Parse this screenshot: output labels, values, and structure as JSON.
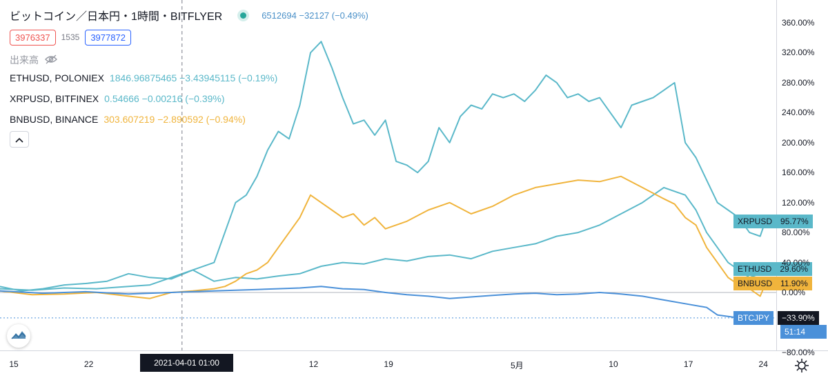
{
  "header": {
    "title": "ビットコイン／日本円・1時間・BITFLYER",
    "btc_values": "6512694  −32127 (−0.49%)"
  },
  "order": {
    "sell_price": "3976337",
    "spread": "1535",
    "buy_price": "3977872"
  },
  "volume_label": "出来高",
  "series_legend": [
    {
      "name": "ETHUSD, POLONIEX",
      "values": "1846.96875465  −3.43945115 (−0.19%)",
      "color": "#5ab8c9"
    },
    {
      "name": "XRPUSD, BITFINEX",
      "values": "0.54666  −0.00216 (−0.39%)",
      "color": "#5ab8c9"
    },
    {
      "name": "BNBUSD, BINANCE",
      "values": "303.607219  −2.890592 (−0.94%)",
      "color": "#f0b43c"
    }
  ],
  "collapse_icon": "chevron-up-icon",
  "crosshair_time": "2021-04-01  01:00",
  "right_tags": {
    "xrp": {
      "name": "XRPUSD",
      "value": "95.77%",
      "color": "#5ab8c9"
    },
    "eth": {
      "name": "ETHUSD",
      "value": "29.60%",
      "color": "#5ab8c9"
    },
    "bnb": {
      "name": "BNBUSD",
      "value": "11.90%",
      "color": "#f0b43c"
    },
    "btc": {
      "name": "BTCJPY",
      "value": "−33.90%",
      "countdown": "51:14",
      "color": "#4a90d9"
    }
  },
  "chart_data": {
    "type": "line",
    "y_unit": "%",
    "ylim": [
      -80,
      380
    ],
    "y_ticks": [
      360,
      320,
      280,
      240,
      200,
      160,
      120,
      80,
      40,
      0,
      -40,
      -80
    ],
    "y_tick_labels": [
      "360.00%",
      "320.00%",
      "280.00%",
      "240.00%",
      "200.00%",
      "160.00%",
      "120.00%",
      "80.00%",
      "40.00%",
      "0.00%",
      "−40.00%",
      "−80.00%"
    ],
    "x_labels": [
      "15",
      "22",
      "12",
      "19",
      "5月",
      "10",
      "17",
      "24"
    ],
    "x_label_days": [
      0,
      7,
      28,
      35,
      47,
      56,
      63,
      70
    ],
    "x_range_days": [
      0,
      72.5
    ],
    "crosshair_day": 17,
    "series": [
      {
        "name": "XRPUSD",
        "color": "#5ab8c9",
        "x": [
          0,
          2,
          4,
          6,
          8,
          10,
          12,
          14,
          16,
          18,
          20,
          22,
          23,
          24,
          25,
          26,
          27,
          28,
          29,
          30,
          31,
          32,
          33,
          34,
          35,
          36,
          37,
          38,
          39,
          40,
          41,
          42,
          43,
          44,
          45,
          46,
          47,
          48,
          49,
          50,
          51,
          52,
          53,
          54,
          55,
          56,
          57,
          58,
          59,
          60,
          61,
          62,
          63,
          64,
          65,
          66,
          67,
          68,
          69,
          70,
          71,
          71.5
        ],
        "y": [
          8,
          2,
          5,
          10,
          12,
          15,
          25,
          20,
          18,
          30,
          40,
          120,
          130,
          155,
          190,
          215,
          205,
          250,
          320,
          335,
          300,
          260,
          225,
          230,
          210,
          230,
          175,
          170,
          160,
          175,
          220,
          200,
          235,
          250,
          245,
          265,
          260,
          265,
          255,
          270,
          290,
          280,
          260,
          265,
          255,
          260,
          240,
          220,
          250,
          255,
          260,
          270,
          280,
          200,
          180,
          150,
          120,
          110,
          100,
          80,
          75,
          95.77
        ]
      },
      {
        "name": "ETHUSD",
        "color": "#5ab8c9",
        "x": [
          0,
          3,
          6,
          9,
          12,
          14,
          16,
          18,
          20,
          22,
          24,
          26,
          28,
          30,
          32,
          34,
          36,
          38,
          40,
          42,
          44,
          46,
          48,
          50,
          52,
          54,
          56,
          58,
          60,
          62,
          64,
          65,
          66,
          67,
          68,
          69,
          70,
          71,
          71.5
        ],
        "y": [
          5,
          3,
          6,
          5,
          8,
          10,
          20,
          30,
          15,
          20,
          18,
          22,
          25,
          35,
          40,
          38,
          45,
          42,
          48,
          50,
          45,
          55,
          60,
          65,
          75,
          80,
          90,
          105,
          120,
          140,
          130,
          110,
          80,
          60,
          40,
          30,
          20,
          25,
          29.6
        ]
      },
      {
        "name": "BNBUSD",
        "color": "#f0b43c",
        "x": [
          0,
          3,
          6,
          9,
          12,
          14,
          16,
          18,
          20,
          21,
          22,
          23,
          24,
          25,
          26,
          27,
          28,
          29,
          30,
          31,
          32,
          33,
          34,
          35,
          36,
          38,
          40,
          42,
          44,
          46,
          48,
          50,
          52,
          54,
          56,
          58,
          60,
          62,
          63,
          64,
          65,
          66,
          67,
          68,
          69,
          70,
          71,
          71.5
        ],
        "y": [
          2,
          -3,
          -2,
          0,
          -5,
          -8,
          0,
          2,
          5,
          8,
          15,
          25,
          30,
          40,
          60,
          80,
          100,
          130,
          120,
          110,
          100,
          105,
          90,
          100,
          85,
          95,
          110,
          120,
          105,
          115,
          130,
          140,
          145,
          150,
          148,
          155,
          140,
          125,
          118,
          100,
          90,
          60,
          40,
          20,
          10,
          5,
          -5,
          11.9
        ]
      },
      {
        "name": "BTCJPY",
        "color": "#4a90d9",
        "x": [
          0,
          4,
          8,
          12,
          16,
          20,
          24,
          28,
          30,
          32,
          34,
          36,
          38,
          40,
          42,
          44,
          46,
          48,
          50,
          52,
          54,
          56,
          58,
          60,
          62,
          64,
          66,
          67,
          68,
          69,
          70,
          71,
          71.5
        ],
        "y": [
          2,
          -1,
          1,
          -2,
          0,
          2,
          4,
          6,
          8,
          5,
          4,
          0,
          -3,
          -5,
          -8,
          -6,
          -4,
          -2,
          -1,
          -3,
          -2,
          0,
          -2,
          -5,
          -10,
          -15,
          -20,
          -30,
          -32,
          -34,
          -38,
          -35,
          -33.9
        ]
      }
    ]
  }
}
